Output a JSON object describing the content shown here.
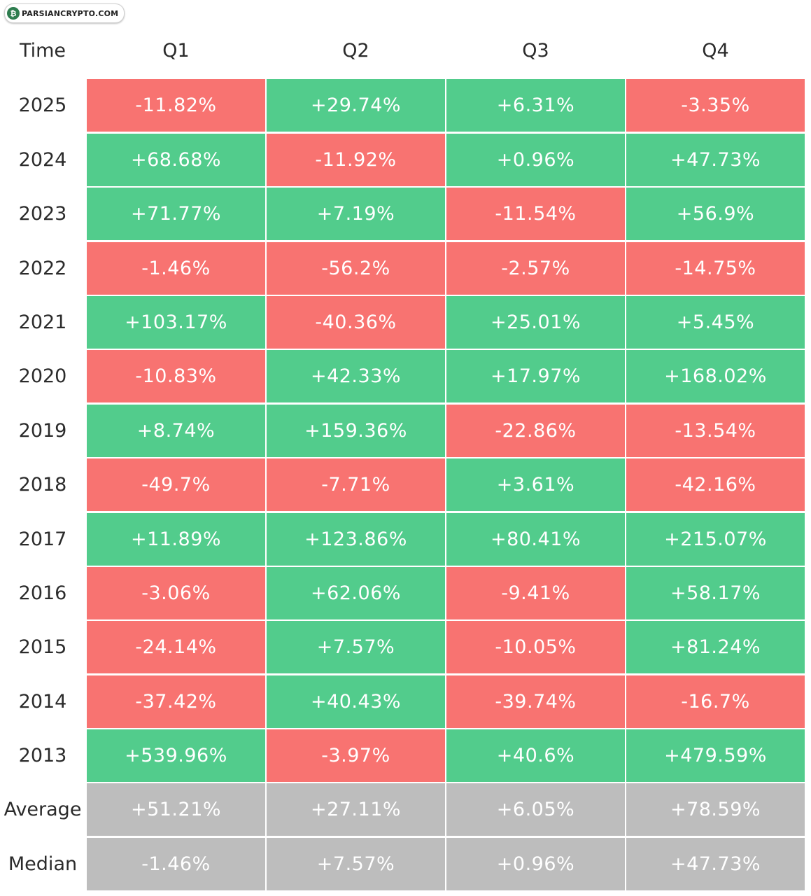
{
  "logo": {
    "text": "PARSIANCRYPTO.COM"
  },
  "colors": {
    "positive": "#52cc8c",
    "negative": "#f87371",
    "neutral": "#bdbdbd",
    "text_dark": "#2b2b2b"
  },
  "chart_data": {
    "type": "table",
    "corner_label": "Time",
    "columns": [
      "Q1",
      "Q2",
      "Q3",
      "Q4"
    ],
    "rows": [
      {
        "label": "2025",
        "values": [
          "-11.82%",
          "+29.74%",
          "+6.31%",
          "-3.35%"
        ]
      },
      {
        "label": "2024",
        "values": [
          "+68.68%",
          "-11.92%",
          "+0.96%",
          "+47.73%"
        ]
      },
      {
        "label": "2023",
        "values": [
          "+71.77%",
          "+7.19%",
          "-11.54%",
          "+56.9%"
        ]
      },
      {
        "label": "2022",
        "values": [
          "-1.46%",
          "-56.2%",
          "-2.57%",
          "-14.75%"
        ]
      },
      {
        "label": "2021",
        "values": [
          "+103.17%",
          "-40.36%",
          "+25.01%",
          "+5.45%"
        ]
      },
      {
        "label": "2020",
        "values": [
          "-10.83%",
          "+42.33%",
          "+17.97%",
          "+168.02%"
        ]
      },
      {
        "label": "2019",
        "values": [
          "+8.74%",
          "+159.36%",
          "-22.86%",
          "-13.54%"
        ]
      },
      {
        "label": "2018",
        "values": [
          "-49.7%",
          "-7.71%",
          "+3.61%",
          "-42.16%"
        ]
      },
      {
        "label": "2017",
        "values": [
          "+11.89%",
          "+123.86%",
          "+80.41%",
          "+215.07%"
        ]
      },
      {
        "label": "2016",
        "values": [
          "-3.06%",
          "+62.06%",
          "-9.41%",
          "+58.17%"
        ]
      },
      {
        "label": "2015",
        "values": [
          "-24.14%",
          "+7.57%",
          "-10.05%",
          "+81.24%"
        ]
      },
      {
        "label": "2014",
        "values": [
          "-37.42%",
          "+40.43%",
          "-39.74%",
          "-16.7%"
        ]
      },
      {
        "label": "2013",
        "values": [
          "+539.96%",
          "-3.97%",
          "+40.6%",
          "+479.59%"
        ]
      }
    ],
    "summary_rows": [
      {
        "label": "Average",
        "values": [
          "+51.21%",
          "+27.11%",
          "+6.05%",
          "+78.59%"
        ]
      },
      {
        "label": "Median",
        "values": [
          "-1.46%",
          "+7.57%",
          "+0.96%",
          "+47.73%"
        ]
      }
    ]
  }
}
